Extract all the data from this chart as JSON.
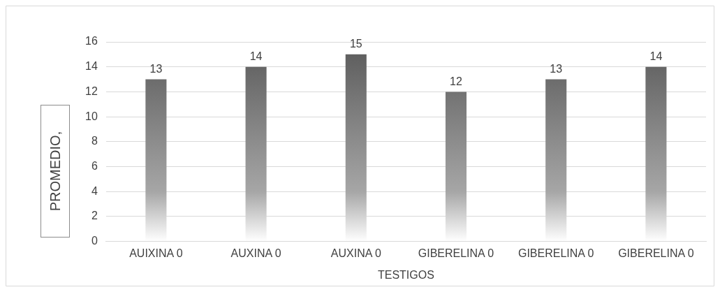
{
  "chart_data": {
    "type": "bar",
    "ylabel": "PROMEDIO,",
    "xlabel": "TESTIGOS",
    "categories": [
      "AUIXINA 0",
      "AUXINA 0",
      "AUXINA 0",
      "GIBERELINA 0",
      "GIBERELINA 0",
      "GIBERELINA 0"
    ],
    "values": [
      13,
      14,
      15,
      12,
      13,
      14
    ],
    "color": "#595959",
    "ylim": [
      0,
      16
    ],
    "yticks": [
      0,
      2,
      4,
      6,
      8,
      10,
      12,
      14,
      16
    ],
    "grid": "y",
    "data_labels": true,
    "legend": false
  }
}
